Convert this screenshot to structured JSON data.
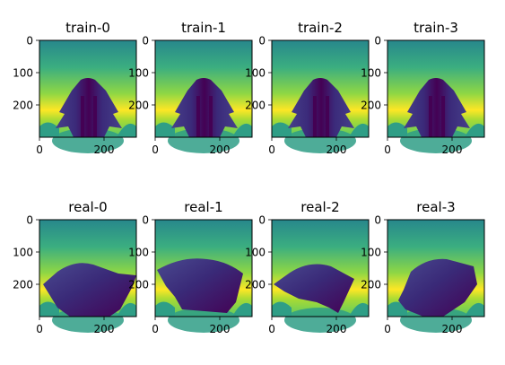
{
  "chart_data": [
    {
      "type": "heatmap",
      "title": "train-0",
      "xticks": [
        0,
        200
      ],
      "yticks": [
        0,
        100,
        200
      ],
      "xlim": [
        0,
        300
      ],
      "ylim": [
        300,
        0
      ],
      "colormap": "viridis",
      "grid": false
    },
    {
      "type": "heatmap",
      "title": "train-1",
      "xticks": [
        0,
        200
      ],
      "yticks": [
        0,
        100,
        200
      ],
      "xlim": [
        0,
        300
      ],
      "ylim": [
        300,
        0
      ],
      "colormap": "viridis",
      "grid": false
    },
    {
      "type": "heatmap",
      "title": "train-2",
      "xticks": [
        0,
        200
      ],
      "yticks": [
        0,
        100,
        200
      ],
      "xlim": [
        0,
        300
      ],
      "ylim": [
        300,
        0
      ],
      "colormap": "viridis",
      "grid": false
    },
    {
      "type": "heatmap",
      "title": "train-3",
      "xticks": [
        0,
        200
      ],
      "yticks": [
        0,
        100,
        200
      ],
      "xlim": [
        0,
        300
      ],
      "ylim": [
        300,
        0
      ],
      "colormap": "viridis",
      "grid": false
    },
    {
      "type": "heatmap",
      "title": "real-0",
      "xticks": [
        0,
        200
      ],
      "yticks": [
        0,
        100,
        200
      ],
      "xlim": [
        0,
        300
      ],
      "ylim": [
        300,
        0
      ],
      "colormap": "viridis",
      "grid": false
    },
    {
      "type": "heatmap",
      "title": "real-1",
      "xticks": [
        0,
        200
      ],
      "yticks": [
        0,
        100,
        200
      ],
      "xlim": [
        0,
        300
      ],
      "ylim": [
        300,
        0
      ],
      "colormap": "viridis",
      "grid": false
    },
    {
      "type": "heatmap",
      "title": "real-2",
      "xticks": [
        0,
        200
      ],
      "yticks": [
        0,
        100,
        200
      ],
      "xlim": [
        0,
        300
      ],
      "ylim": [
        300,
        0
      ],
      "colormap": "viridis",
      "grid": false
    },
    {
      "type": "heatmap",
      "title": "real-3",
      "xticks": [
        0,
        200
      ],
      "yticks": [
        0,
        100,
        200
      ],
      "xlim": [
        0,
        300
      ],
      "ylim": [
        300,
        0
      ],
      "colormap": "viridis",
      "grid": false
    }
  ],
  "colors": {
    "background_top": "#2a8c8a",
    "background_mid": "#6cce59",
    "background_band": "#fde725",
    "background_low": "#9bd93c",
    "floor": "#2f9e86",
    "cloth_dark": "#440154",
    "cloth_mid": "#3b2a7a",
    "cloth_edge": "#46408a"
  }
}
